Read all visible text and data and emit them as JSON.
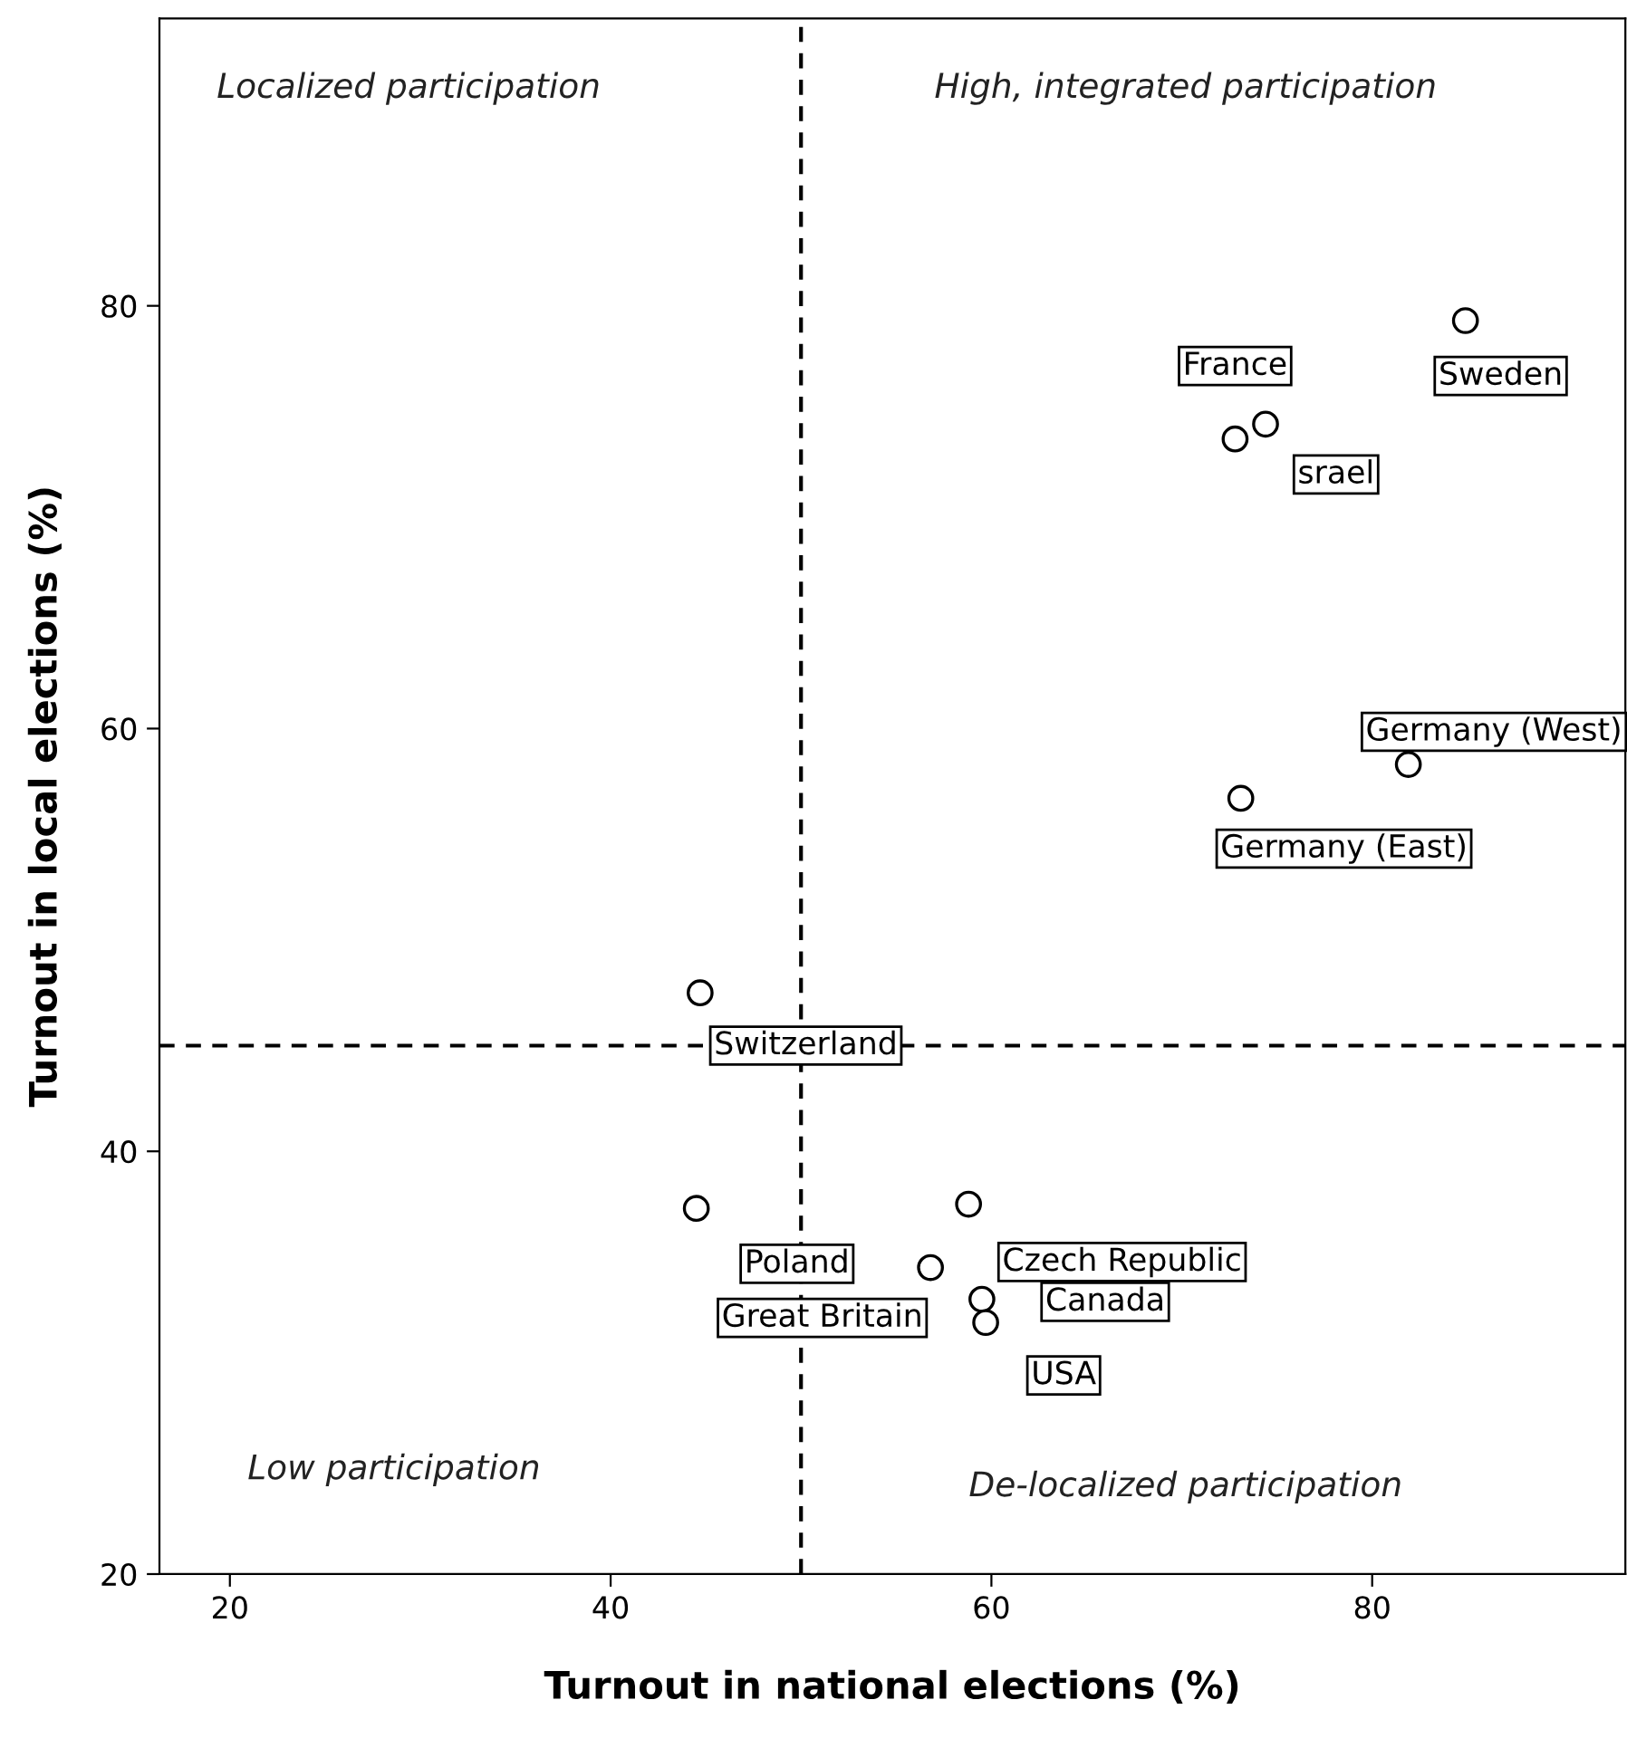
{
  "chart_data": {
    "type": "scatter",
    "xlabel": "Turnout in national elections (%)",
    "ylabel": "Turnout in local elections (%)",
    "annotations": [
      "Localized participation",
      "High, integrated participation",
      "Low participation",
      "De-localized participation"
    ],
    "series": [
      {
        "color": "#000000",
        "x": [
          84.9,
          72.8,
          74.4,
          81.9,
          73.1,
          44.7,
          44.5,
          58.8,
          56.8,
          59.5,
          59.7
        ],
        "values": [
          79.3,
          73.7,
          74.4,
          58.3,
          56.7,
          47.5,
          37.3,
          37.5,
          34.5,
          33.0,
          31.9
        ],
        "value_labels": [
          "Sweden",
          "France",
          "srael",
          "Germany (West)",
          "Germany (East)",
          "Switzerland",
          "Poland",
          "Czech Republic",
          "Great Britain",
          "Canada",
          "USA"
        ]
      }
    ],
    "xlim": [
      16.3,
      93.3
    ],
    "ylim": [
      20,
      93.6
    ],
    "xticks": [
      20,
      40,
      60,
      80
    ],
    "yticks": [
      20,
      40,
      60,
      80
    ],
    "ref_lines": [
      {
        "axis": "x",
        "value": 50,
        "line_style": "dashed",
        "color": "#000000"
      },
      {
        "axis": "y",
        "value": 45,
        "line_style": "dashed",
        "color": "#000000"
      }
    ],
    "marker": "circle",
    "grid": false,
    "legend": false
  }
}
